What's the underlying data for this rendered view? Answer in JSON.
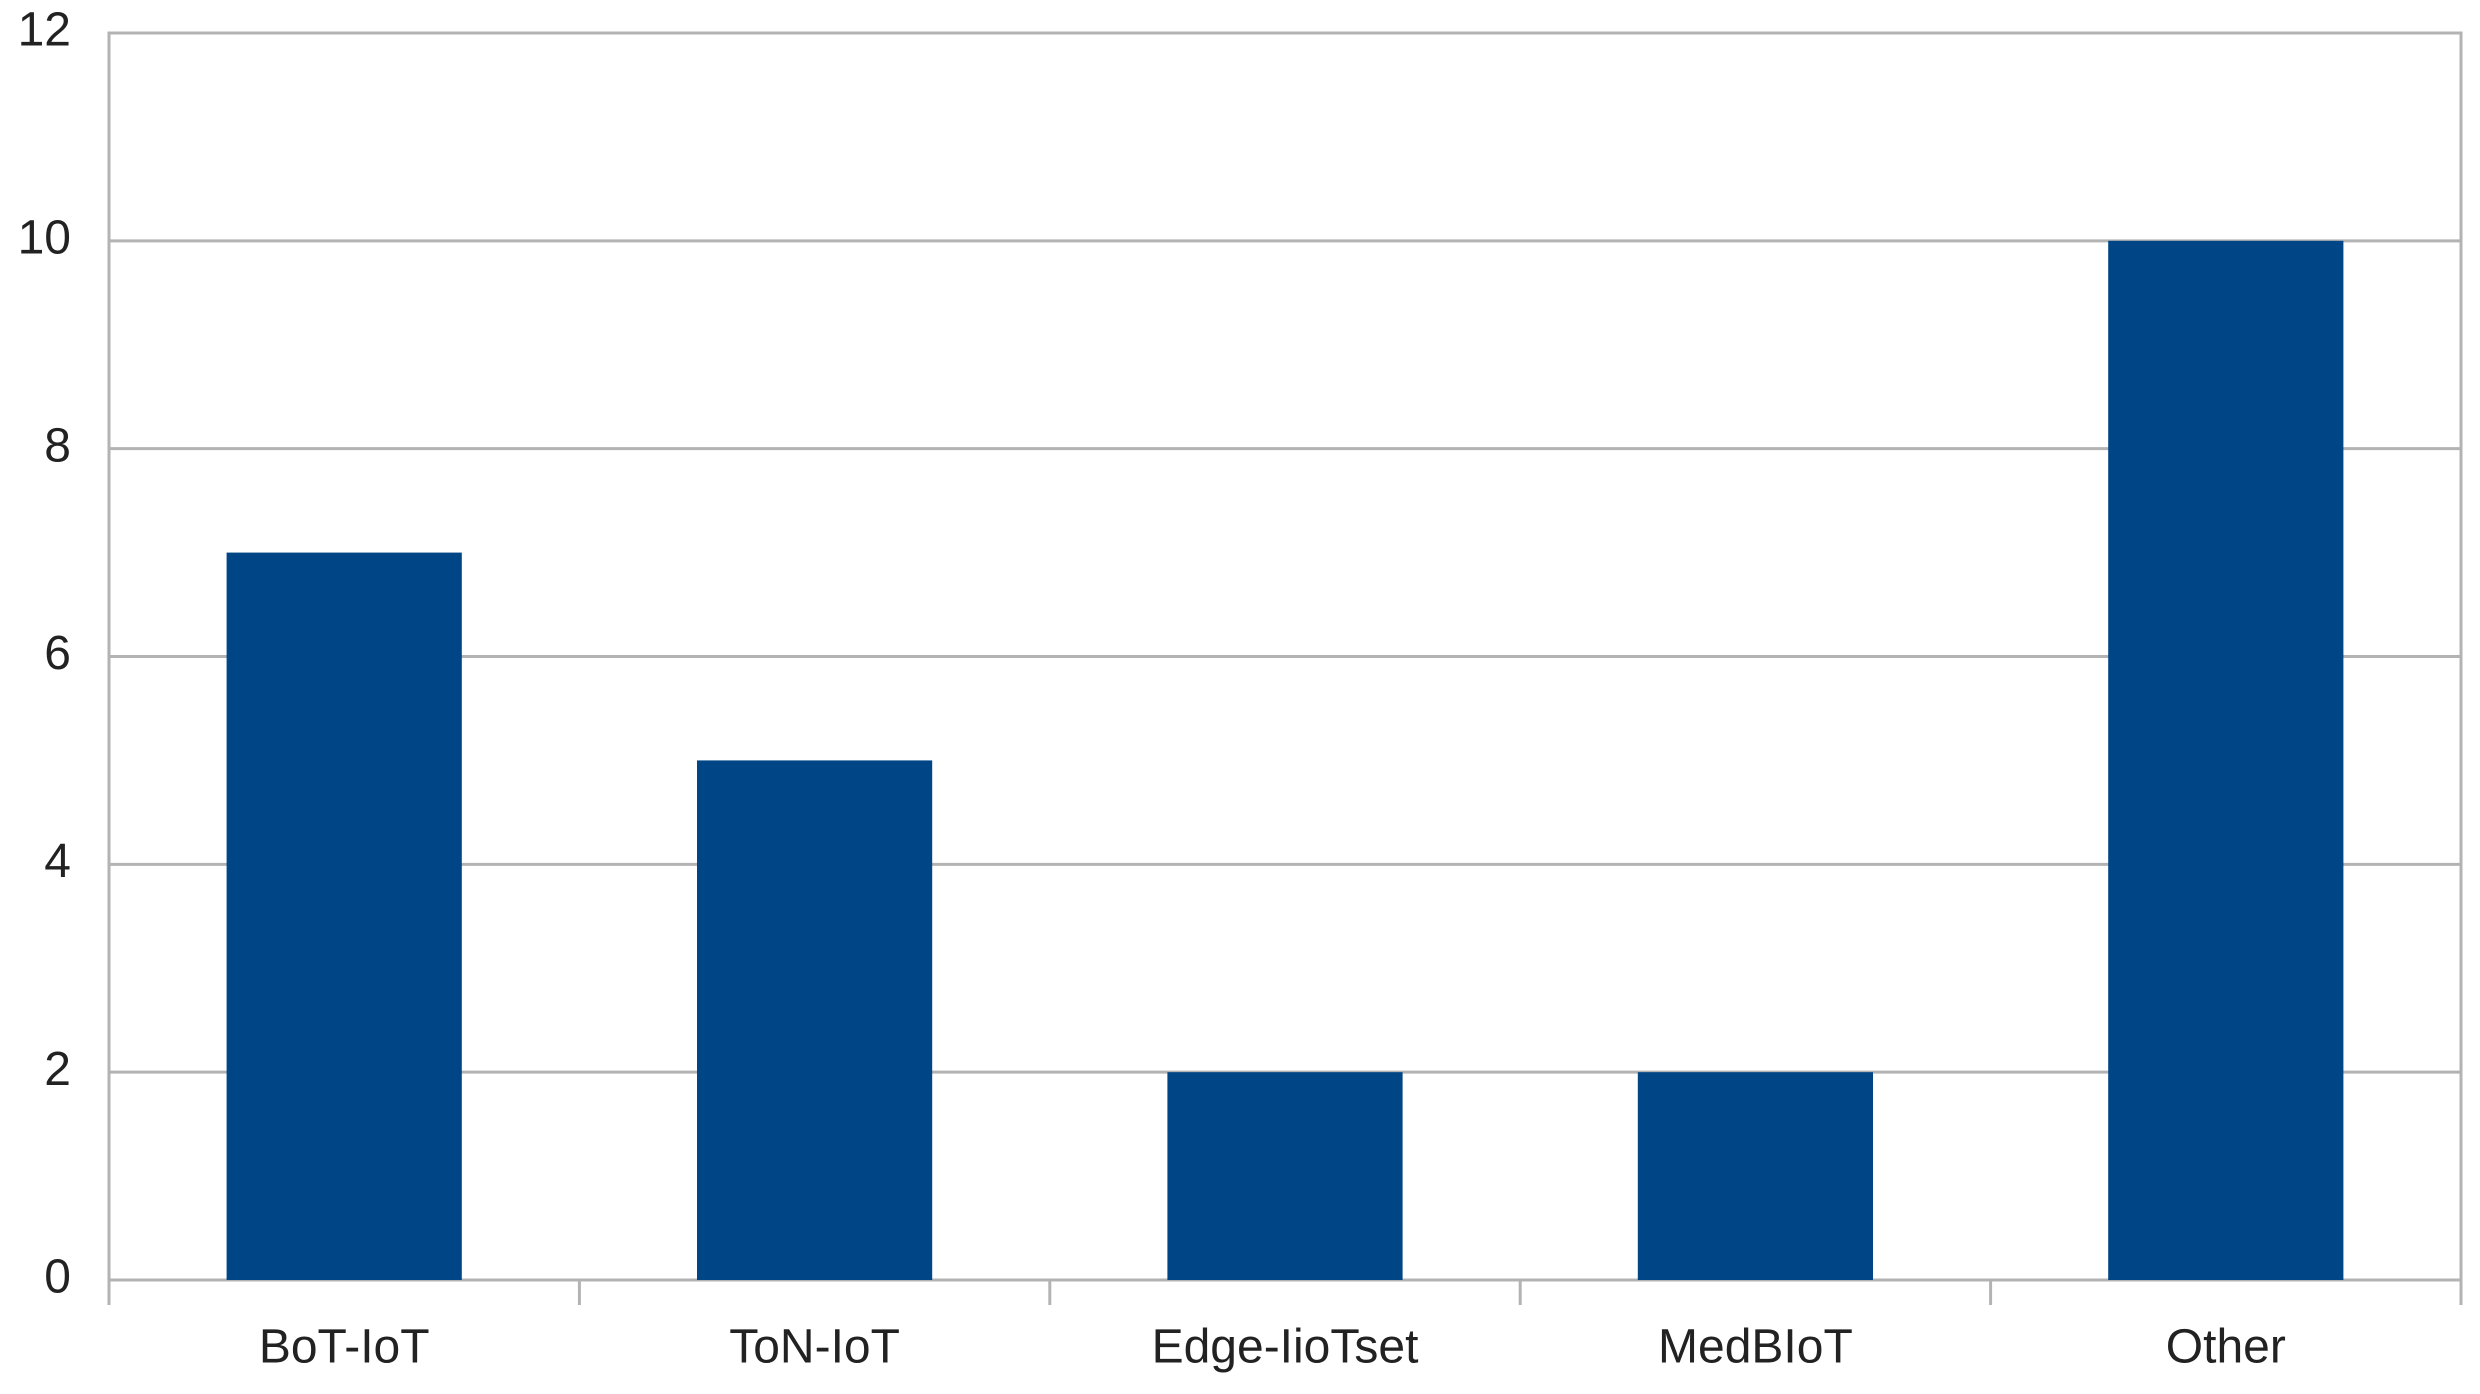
{
  "chart_data": {
    "type": "bar",
    "categories": [
      "BoT-IoT",
      "ToN-IoT",
      "Edge-IioTset",
      "MedBIoT",
      "Other"
    ],
    "values": [
      7,
      5,
      2,
      2,
      10
    ],
    "color": "#004586",
    "ylim": [
      0,
      12
    ],
    "yticks": [
      0,
      2,
      4,
      6,
      8,
      10,
      12
    ],
    "grid": true
  }
}
